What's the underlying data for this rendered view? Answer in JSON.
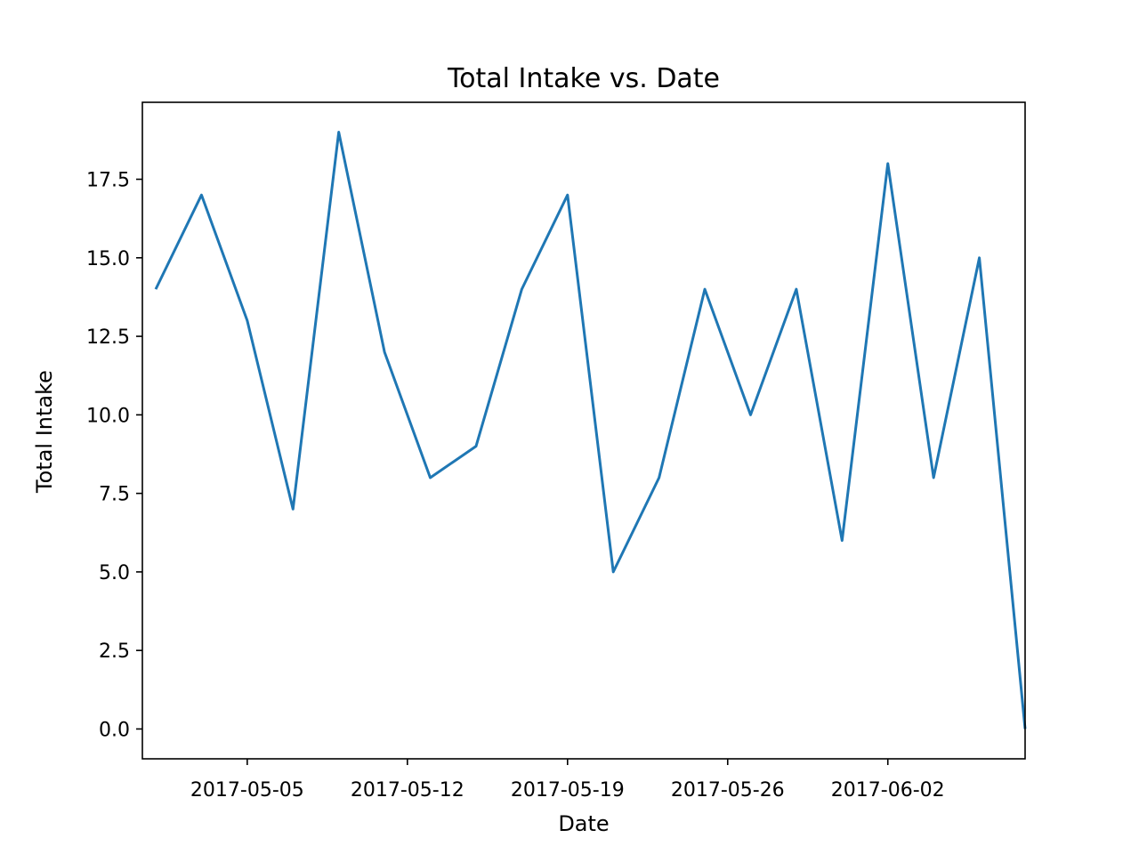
{
  "chart_data": {
    "type": "line",
    "title": "Total Intake vs. Date",
    "xlabel": "Date",
    "ylabel": "Total Intake",
    "x": [
      "2017-05-01",
      "2017-05-03",
      "2017-05-05",
      "2017-05-07",
      "2017-05-09",
      "2017-05-11",
      "2017-05-13",
      "2017-05-15",
      "2017-05-17",
      "2017-05-19",
      "2017-05-21",
      "2017-05-23",
      "2017-05-25",
      "2017-05-27",
      "2017-05-29",
      "2017-05-31",
      "2017-06-02",
      "2017-06-04",
      "2017-06-06",
      "2017-06-08"
    ],
    "values": [
      14,
      17,
      13,
      7,
      19,
      12,
      8,
      9,
      14,
      17,
      5,
      8,
      14,
      10,
      14,
      6,
      18,
      8,
      15,
      0
    ],
    "xlim": [
      "2017-04-30T10:00",
      "2017-06-08T00:00"
    ],
    "ylim": [
      -0.95,
      19.95
    ],
    "x_ticks": [
      "2017-05-05",
      "2017-05-12",
      "2017-05-19",
      "2017-05-26",
      "2017-06-02"
    ],
    "y_ticks": [
      0,
      2.5,
      5,
      7.5,
      10,
      12.5,
      15,
      17.5
    ],
    "y_tick_labels": [
      "0.0",
      "2.5",
      "5.0",
      "7.5",
      "10.0",
      "12.5",
      "15.0",
      "17.5"
    ],
    "grid": false,
    "line_color": "#1f77b4"
  }
}
